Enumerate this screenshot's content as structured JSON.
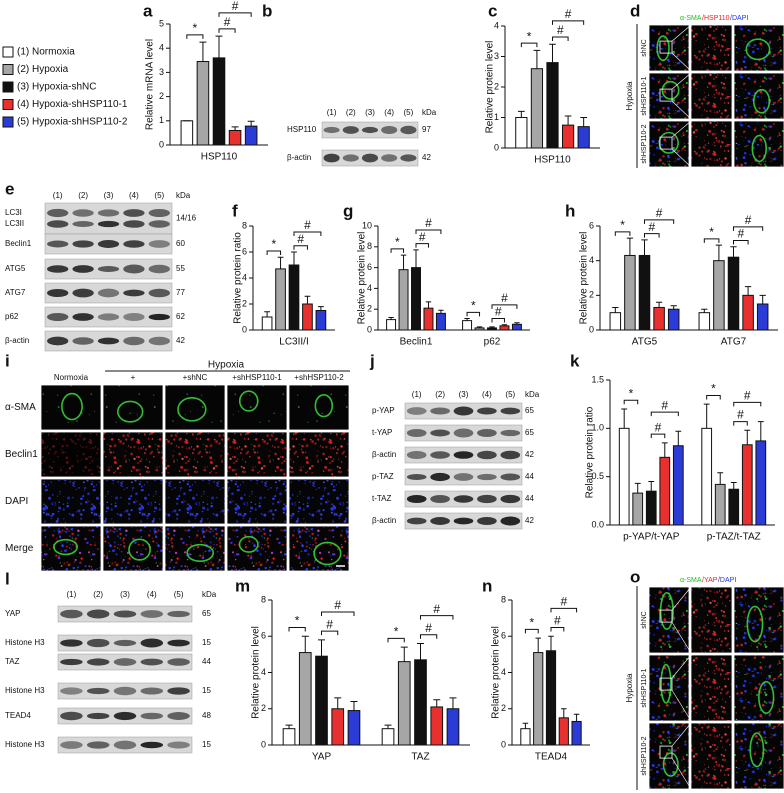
{
  "chart_data": [
    {
      "panel": "a",
      "type": "bar",
      "ylabel": "Relative mRNA level",
      "categories": [
        "HSP110"
      ],
      "ylim": [
        0,
        5
      ],
      "yticks": [
        0,
        1,
        2,
        3,
        4,
        5
      ],
      "series": [
        {
          "name": "(1) Normoxia",
          "color": "#ffffff",
          "values": [
            1
          ],
          "errors": [
            0
          ]
        },
        {
          "name": "(2) Hypoxia",
          "color": "#a6a6a6",
          "values": [
            3.45
          ],
          "errors": [
            0.8
          ]
        },
        {
          "name": "(3) Hypoxia-shNC",
          "color": "#111111",
          "values": [
            3.6
          ],
          "errors": [
            0.9
          ]
        },
        {
          "name": "(4) Hypoxia-shHSP110-1",
          "color": "#e8312f",
          "values": [
            0.6
          ],
          "errors": [
            0.15
          ]
        },
        {
          "name": "(5) Hypoxia-shHSP110-2",
          "color": "#2b3bd6",
          "values": [
            0.78
          ],
          "errors": [
            0.2
          ]
        }
      ],
      "annotations": [
        [
          "*",
          "#",
          "#"
        ]
      ]
    },
    {
      "panel": "c",
      "type": "bar",
      "ylabel": "Relative protein level",
      "categories": [
        "HSP110"
      ],
      "ylim": [
        0,
        4
      ],
      "yticks": [
        0,
        1,
        2,
        3,
        4
      ],
      "series": [
        {
          "color": "#ffffff",
          "values": [
            1
          ],
          "errors": [
            0.2
          ]
        },
        {
          "color": "#a6a6a6",
          "values": [
            2.6
          ],
          "errors": [
            0.6
          ]
        },
        {
          "color": "#111111",
          "values": [
            2.8
          ],
          "errors": [
            0.6
          ]
        },
        {
          "color": "#e8312f",
          "values": [
            0.75
          ],
          "errors": [
            0.3
          ]
        },
        {
          "color": "#2b3bd6",
          "values": [
            0.7
          ],
          "errors": [
            0.3
          ]
        }
      ],
      "annotations": [
        [
          "*",
          "#",
          "#"
        ]
      ]
    },
    {
      "panel": "f",
      "type": "bar",
      "ylabel": "Relative protein ratio",
      "categories": [
        "LC3II/I"
      ],
      "ylim": [
        0,
        8
      ],
      "yticks": [
        0,
        2,
        4,
        6,
        8
      ],
      "series": [
        {
          "color": "#ffffff",
          "values": [
            1
          ],
          "errors": [
            0.4
          ]
        },
        {
          "color": "#a6a6a6",
          "values": [
            4.7
          ],
          "errors": [
            0.9
          ]
        },
        {
          "color": "#111111",
          "values": [
            5
          ],
          "errors": [
            1
          ]
        },
        {
          "color": "#e8312f",
          "values": [
            2
          ],
          "errors": [
            0.6
          ]
        },
        {
          "color": "#2b3bd6",
          "values": [
            1.5
          ],
          "errors": [
            0.3
          ]
        }
      ],
      "annotations": [
        [
          "*",
          "#",
          "#"
        ]
      ]
    },
    {
      "panel": "g",
      "type": "bar",
      "ylabel": "Relative protein level",
      "categories": [
        "Beclin1",
        "p62"
      ],
      "ylim": [
        0,
        10
      ],
      "yticks": [
        0,
        2,
        4,
        6,
        8,
        10
      ],
      "series": [
        {
          "color": "#ffffff",
          "values": [
            1,
            0.9
          ],
          "errors": [
            0.2,
            0.2
          ]
        },
        {
          "color": "#a6a6a6",
          "values": [
            5.8,
            0.2
          ],
          "errors": [
            1.4,
            0.1
          ]
        },
        {
          "color": "#111111",
          "values": [
            6,
            0.2
          ],
          "errors": [
            1.7,
            0.1
          ]
        },
        {
          "color": "#e8312f",
          "values": [
            2.1,
            0.4
          ],
          "errors": [
            0.6,
            0.1
          ]
        },
        {
          "color": "#2b3bd6",
          "values": [
            1.6,
            0.55
          ],
          "errors": [
            0.3,
            0.15
          ]
        }
      ],
      "annotations": [
        [
          "*",
          "#",
          "#"
        ],
        [
          "*",
          "#",
          "#"
        ]
      ]
    },
    {
      "panel": "h",
      "type": "bar",
      "ylabel": "Relative protein level",
      "categories": [
        "ATG5",
        "ATG7"
      ],
      "ylim": [
        0,
        6
      ],
      "yticks": [
        0,
        2,
        4,
        6
      ],
      "series": [
        {
          "color": "#ffffff",
          "values": [
            1,
            1
          ],
          "errors": [
            0.3,
            0.2
          ]
        },
        {
          "color": "#a6a6a6",
          "values": [
            4.3,
            4
          ],
          "errors": [
            1,
            0.9
          ]
        },
        {
          "color": "#111111",
          "values": [
            4.3,
            4.2
          ],
          "errors": [
            0.9,
            0.6
          ]
        },
        {
          "color": "#e8312f",
          "values": [
            1.3,
            2
          ],
          "errors": [
            0.3,
            0.5
          ]
        },
        {
          "color": "#2b3bd6",
          "values": [
            1.2,
            1.5
          ],
          "errors": [
            0.2,
            0.5
          ]
        }
      ],
      "annotations": [
        [
          "*",
          "#",
          "#"
        ],
        [
          "*",
          "#",
          "#"
        ]
      ]
    },
    {
      "panel": "k",
      "type": "bar",
      "ylabel": "Relative protein ratio",
      "categories": [
        "p-YAP/t-YAP",
        "p-TAZ/t-TAZ"
      ],
      "ylim": [
        0,
        1.5
      ],
      "yticks": [
        {
          "value": 0,
          "label": "0.0"
        },
        0.5,
        {
          "value": 1,
          "label": "1.0"
        },
        1.5
      ],
      "series": [
        {
          "color": "#ffffff",
          "values": [
            1,
            1
          ],
          "errors": [
            0.2,
            0.25
          ]
        },
        {
          "color": "#a6a6a6",
          "values": [
            0.33,
            0.42
          ],
          "errors": [
            0.1,
            0.12
          ]
        },
        {
          "color": "#111111",
          "values": [
            0.35,
            0.37
          ],
          "errors": [
            0.1,
            0.07
          ]
        },
        {
          "color": "#e8312f",
          "values": [
            0.7,
            0.83
          ],
          "errors": [
            0.15,
            0.15
          ]
        },
        {
          "color": "#2b3bd6",
          "values": [
            0.82,
            0.87
          ],
          "errors": [
            0.15,
            0.2
          ]
        }
      ],
      "annotations": [
        [
          "*",
          "#",
          "#"
        ],
        [
          "*",
          "#",
          "#"
        ]
      ]
    },
    {
      "panel": "m",
      "type": "bar",
      "ylabel": "Relative protein level",
      "categories": [
        "YAP",
        "TAZ"
      ],
      "ylim": [
        0,
        8
      ],
      "yticks": [
        0,
        2,
        4,
        6,
        8
      ],
      "series": [
        {
          "color": "#ffffff",
          "values": [
            0.9,
            0.9
          ],
          "errors": [
            0.2,
            0.2
          ]
        },
        {
          "color": "#a6a6a6",
          "values": [
            5.1,
            4.6
          ],
          "errors": [
            0.9,
            0.8
          ]
        },
        {
          "color": "#111111",
          "values": [
            4.9,
            4.7
          ],
          "errors": [
            0.9,
            0.9
          ]
        },
        {
          "color": "#e8312f",
          "values": [
            2,
            2.1
          ],
          "errors": [
            0.6,
            0.4
          ]
        },
        {
          "color": "#2b3bd6",
          "values": [
            1.9,
            2
          ],
          "errors": [
            0.5,
            0.6
          ]
        }
      ],
      "annotations": [
        [
          "*",
          "#",
          "#"
        ],
        [
          "*",
          "#",
          "#"
        ]
      ]
    },
    {
      "panel": "n",
      "type": "bar",
      "ylabel": "Relative protein level",
      "categories": [
        "TEAD4"
      ],
      "ylim": [
        0,
        8
      ],
      "yticks": [
        0,
        2,
        4,
        6,
        8
      ],
      "series": [
        {
          "color": "#ffffff",
          "values": [
            0.9
          ],
          "errors": [
            0.3
          ]
        },
        {
          "color": "#a6a6a6",
          "values": [
            5.1
          ],
          "errors": [
            0.8
          ]
        },
        {
          "color": "#111111",
          "values": [
            5.2
          ],
          "errors": [
            0.8
          ]
        },
        {
          "color": "#e8312f",
          "values": [
            1.5
          ],
          "errors": [
            0.5
          ]
        },
        {
          "color": "#2b3bd6",
          "values": [
            1.3
          ],
          "errors": [
            0.4
          ]
        }
      ],
      "annotations": [
        [
          "*",
          "#",
          "#"
        ]
      ]
    }
  ],
  "blots": [
    {
      "panel": "b",
      "lanes": [
        "(1)",
        "(2)",
        "(3)",
        "(4)",
        "(5)"
      ],
      "unit": "kDa",
      "rows": [
        {
          "labels": [
            "HSP110"
          ],
          "kda": "97"
        },
        {
          "labels": [
            "β-actin"
          ],
          "kda": "42"
        }
      ]
    },
    {
      "panel": "e",
      "lanes": [
        "(1)",
        "(2)",
        "(3)",
        "(4)",
        "(5)"
      ],
      "unit": "kDa",
      "rows": [
        {
          "labels": [
            "LC3I",
            "LC3II"
          ],
          "kda": "14/16"
        },
        {
          "labels": [
            "Beclin1"
          ],
          "kda": "60"
        },
        {
          "labels": [
            "ATG5"
          ],
          "kda": "55"
        },
        {
          "labels": [
            "ATG7"
          ],
          "kda": "77"
        },
        {
          "labels": [
            "p62"
          ],
          "kda": "62"
        },
        {
          "labels": [
            "β-actin"
          ],
          "kda": "42"
        }
      ]
    },
    {
      "panel": "j",
      "lanes": [
        "(1)",
        "(2)",
        "(3)",
        "(4)",
        "(5)"
      ],
      "unit": "kDa",
      "rows": [
        {
          "labels": [
            "p-YAP"
          ],
          "kda": "65"
        },
        {
          "labels": [
            "t-YAP"
          ],
          "kda": "65"
        },
        {
          "labels": [
            "β-actin"
          ],
          "kda": "42"
        },
        {
          "labels": [
            "p-TAZ"
          ],
          "kda": "44"
        },
        {
          "labels": [
            "t-TAZ"
          ],
          "kda": "44"
        },
        {
          "labels": [
            "β-actin"
          ],
          "kda": "42"
        }
      ]
    },
    {
      "panel": "l",
      "lanes": [
        "(1)",
        "(2)",
        "(3)",
        "(4)",
        "(5)"
      ],
      "unit": "kDa",
      "rows": [
        {
          "labels": [
            "YAP"
          ],
          "kda": "65"
        },
        {
          "labels": [
            "Histone H3"
          ],
          "kda": "15"
        },
        {
          "labels": [
            "TAZ"
          ],
          "kda": "44"
        },
        {
          "labels": [
            "Histone H3"
          ],
          "kda": "15"
        },
        {
          "labels": [
            "TEAD4"
          ],
          "kda": "48"
        },
        {
          "labels": [
            "Histone H3"
          ],
          "kda": "15"
        }
      ]
    }
  ],
  "micrographs": [
    {
      "panel": "d",
      "stain": [
        "α-SMA",
        "/HSP110",
        "/DAPI"
      ],
      "stain_colors": [
        "#22bb22",
        "#ee2222",
        "#2233dd"
      ],
      "condition": "Hypoxia",
      "rows": [
        "shNC",
        "shHSP110-1",
        "shHSP110-2"
      ]
    },
    {
      "panel": "i",
      "group": "Hypoxia",
      "columns": [
        "Normoxia",
        "+",
        "+shNC",
        "+shHSP110-1",
        "+shHSP110-2"
      ],
      "rows": [
        "α-SMA",
        "Beclin1",
        "DAPI",
        "Merge"
      ]
    },
    {
      "panel": "o",
      "stain": [
        "α-SMA",
        "/YAP",
        "/DAPI"
      ],
      "stain_colors": [
        "#22bb22",
        "#ee2222",
        "#2233dd"
      ],
      "condition": "Hypoxia",
      "rows": [
        "shNC",
        "shHSP110-1",
        "shHSP110-2"
      ]
    }
  ]
}
